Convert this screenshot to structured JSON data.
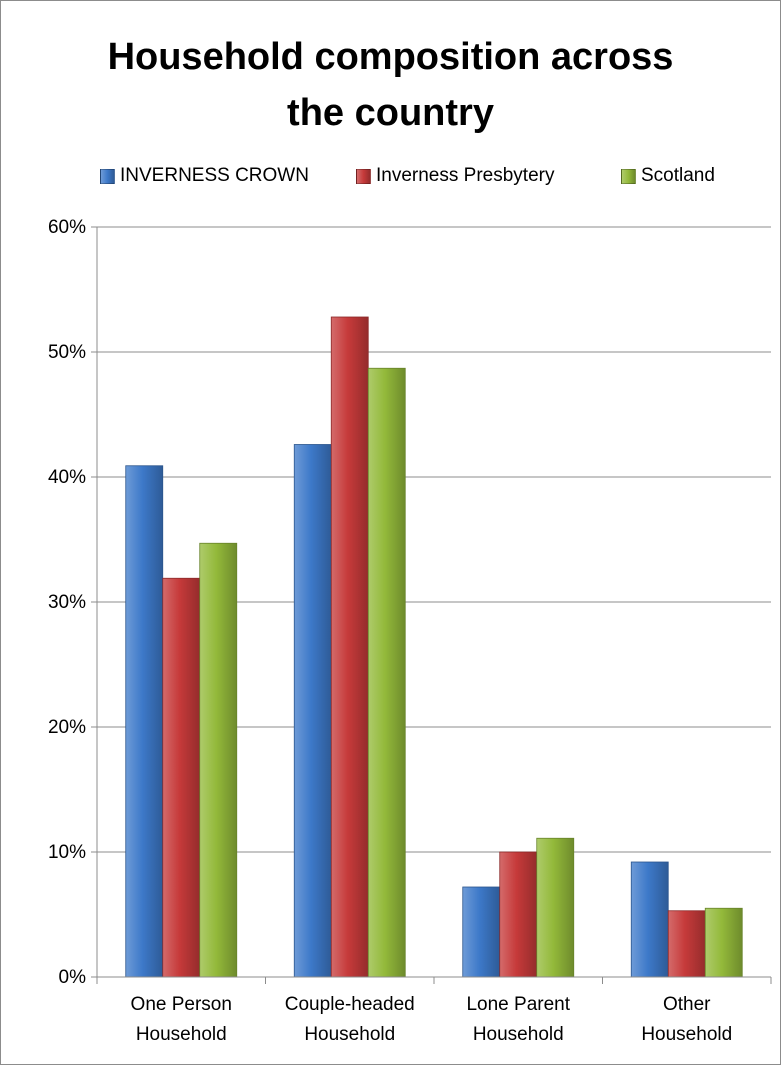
{
  "chart_data": {
    "type": "bar",
    "title_lines": [
      "Household composition across",
      "the country"
    ],
    "categories": [
      [
        "One Person",
        "Household"
      ],
      [
        "Couple-headed",
        "Household"
      ],
      [
        "Lone Parent",
        "Household"
      ],
      [
        "Other",
        "Household"
      ]
    ],
    "series": [
      {
        "name": "INVERNESS CROWN",
        "color": "#3d79c9",
        "values": [
          0.409,
          0.426,
          0.072,
          0.092
        ]
      },
      {
        "name": "Inverness Presbytery",
        "color": "#c63a3a",
        "values": [
          0.319,
          0.528,
          0.1,
          0.053
        ]
      },
      {
        "name": "Scotland",
        "color": "#93b93a",
        "values": [
          0.347,
          0.487,
          0.111,
          0.055
        ]
      }
    ],
    "ylim": [
      0,
      0.6
    ],
    "yticks": [
      0,
      0.1,
      0.2,
      0.3,
      0.4,
      0.5,
      0.6
    ],
    "ytick_labels": [
      "0%",
      "10%",
      "20%",
      "30%",
      "40%",
      "50%",
      "60%"
    ],
    "xlabel": "",
    "ylabel": "",
    "grid": true,
    "legend_position": "top"
  }
}
